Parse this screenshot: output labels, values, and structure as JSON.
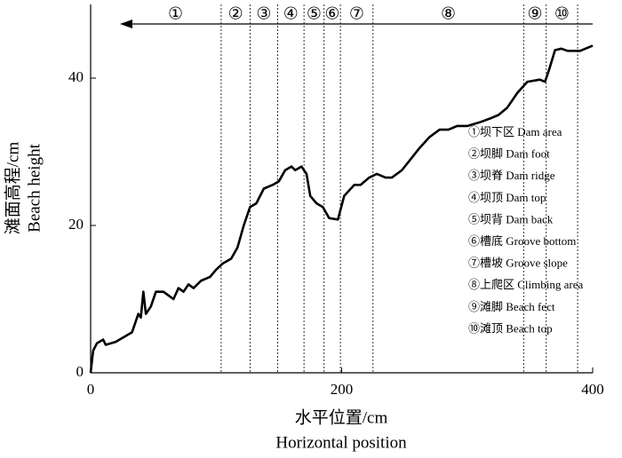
{
  "chart_data": {
    "type": "line",
    "xlabel": [
      "水平位置/cm",
      "Horizontal position"
    ],
    "ylabel": [
      "滩面高程/cm",
      "Beach height"
    ],
    "xlim": [
      0,
      400
    ],
    "ylim": [
      0,
      50
    ],
    "xticks": [
      0,
      200,
      400
    ],
    "yticks": [
      0,
      20,
      40
    ],
    "color": "#000000",
    "x": [
      0,
      2,
      5,
      10,
      12,
      20,
      28,
      33,
      36,
      38,
      40,
      42,
      44,
      48,
      52,
      58,
      62,
      66,
      70,
      74,
      78,
      82,
      88,
      95,
      100,
      105,
      112,
      117,
      122,
      127,
      132,
      138,
      145,
      150,
      155,
      160,
      163,
      168,
      172,
      175,
      180,
      185,
      190,
      197,
      202,
      210,
      215,
      222,
      228,
      235,
      240,
      248,
      255,
      262,
      270,
      278,
      285,
      292,
      300,
      310,
      318,
      325,
      332,
      340,
      348,
      358,
      362,
      365,
      370,
      375,
      380,
      390,
      400
    ],
    "values": [
      0,
      3,
      4,
      4.5,
      3.8,
      4.2,
      5,
      5.5,
      7,
      8,
      7.5,
      11,
      8,
      9,
      11,
      11,
      10.5,
      10,
      11.5,
      11,
      12,
      11.5,
      12.5,
      13,
      14,
      14.8,
      15.5,
      17,
      20,
      22.5,
      23,
      25,
      25.5,
      26,
      27.5,
      28,
      27.5,
      28,
      27,
      24,
      23,
      22.5,
      21,
      20.8,
      24,
      25.5,
      25.5,
      26.5,
      27,
      26.5,
      26.5,
      27.5,
      29,
      30.5,
      32,
      33,
      33,
      33.5,
      33.5,
      34,
      34.5,
      35,
      36,
      38,
      39.5,
      39.8,
      39.5,
      41,
      43.8,
      44,
      43.7,
      43.7,
      44.4
    ],
    "zone_labels": [
      "①",
      "②",
      "③",
      "④",
      "⑤",
      "⑥",
      "⑦",
      "⑧",
      "⑨",
      "⑩"
    ],
    "zone_boundaries": [
      104,
      127,
      149,
      170,
      186,
      199,
      225,
      345,
      363,
      388
    ],
    "legend": [
      "①坝下区 Dam area",
      "②坝脚 Dam foot",
      "③坝脊 Dam ridge",
      "④坝顶 Dam top",
      "⑤坝背 Dam back",
      "⑥槽底 Groove bottom",
      "⑦槽坡 Groove slope",
      "⑧上爬区 Climbing area",
      "⑨滩脚 Beach fect",
      "⑩滩顶 Beach top"
    ]
  }
}
